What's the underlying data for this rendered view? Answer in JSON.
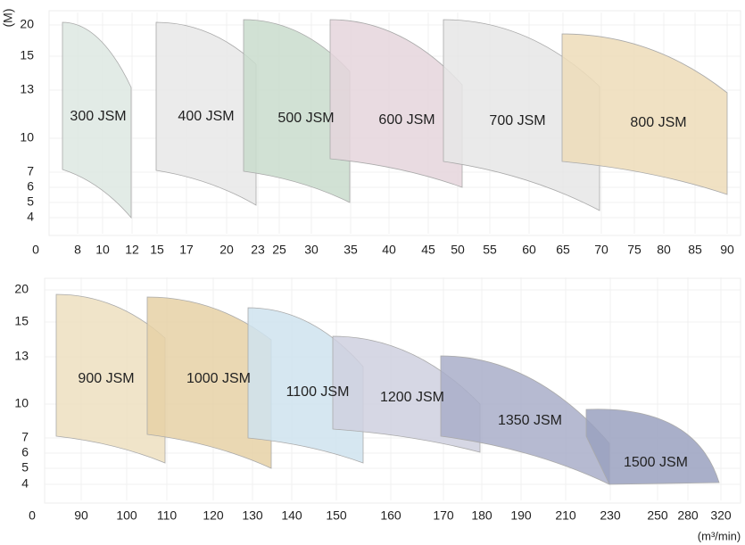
{
  "y_axis_label": "(M)",
  "x_axis_unit": "(m³/min)",
  "top_panel": {
    "y_ticks": [
      "20",
      "15",
      "13",
      "10",
      "7",
      "6",
      "5",
      "4"
    ],
    "x_ticks": [
      "0",
      "8",
      "10",
      "12",
      "15",
      "17",
      "20",
      "23",
      "25",
      "30",
      "35",
      "40",
      "45",
      "50",
      "55",
      "60",
      "65",
      "70",
      "75",
      "80",
      "85",
      "90"
    ],
    "regions": [
      {
        "label": "300 JSM"
      },
      {
        "label": "400 JSM"
      },
      {
        "label": "500 JSM"
      },
      {
        "label": "600 JSM"
      },
      {
        "label": "700 JSM"
      },
      {
        "label": "800 JSM"
      }
    ]
  },
  "bottom_panel": {
    "y_ticks": [
      "20",
      "15",
      "13",
      "10",
      "7",
      "6",
      "5",
      "4"
    ],
    "x_ticks": [
      "0",
      "90",
      "100",
      "110",
      "120",
      "130",
      "140",
      "150",
      "160",
      "170",
      "180",
      "190",
      "210",
      "230",
      "250",
      "280",
      "320"
    ],
    "regions": [
      {
        "label": "900 JSM"
      },
      {
        "label": "1000 JSM"
      },
      {
        "label": "1100 JSM"
      },
      {
        "label": "1200 JSM"
      },
      {
        "label": "1350 JSM"
      },
      {
        "label": "1500 JSM"
      }
    ]
  }
}
